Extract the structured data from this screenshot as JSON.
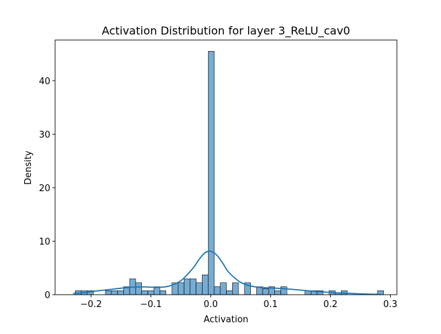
{
  "chart_data": {
    "type": "bar",
    "subtype": "histogram-with-kde",
    "title": "Activation Distribution for layer 3_ReLU_cav0",
    "xlabel": "Activation",
    "ylabel": "Density",
    "xlim": [
      -0.26,
      0.311
    ],
    "ylim": [
      0,
      47.6
    ],
    "xticks": [
      -0.2,
      -0.1,
      0.0,
      0.1,
      0.2,
      0.3
    ],
    "xtick_labels": [
      "−0.2",
      "−0.1",
      "0.0",
      "0.1",
      "0.2",
      "0.3"
    ],
    "yticks": [
      0,
      10,
      20,
      30,
      40
    ],
    "ytick_labels": [
      "0",
      "10",
      "20",
      "30",
      "40"
    ],
    "grid": false,
    "bar_color": "#6fa8d2",
    "kde_color": "#1f77b4",
    "bins": [
      {
        "x0": -0.2264,
        "x1": -0.2163,
        "density": 0.74
      },
      {
        "x0": -0.2163,
        "x1": -0.2062,
        "density": 0.74
      },
      {
        "x0": -0.2062,
        "x1": -0.1961,
        "density": 0.74
      },
      {
        "x0": -0.1759,
        "x1": -0.1658,
        "density": 0.74
      },
      {
        "x0": -0.1658,
        "x1": -0.1557,
        "density": 0.74
      },
      {
        "x0": -0.1557,
        "x1": -0.1456,
        "density": 0.74
      },
      {
        "x0": -0.1456,
        "x1": -0.1355,
        "density": 1.48
      },
      {
        "x0": -0.1355,
        "x1": -0.1254,
        "density": 2.96
      },
      {
        "x0": -0.1254,
        "x1": -0.1153,
        "density": 2.22
      },
      {
        "x0": -0.1153,
        "x1": -0.1052,
        "density": 0.74
      },
      {
        "x0": -0.1052,
        "x1": -0.0951,
        "density": 0.74
      },
      {
        "x0": -0.0951,
        "x1": -0.085,
        "density": 1.48
      },
      {
        "x0": -0.085,
        "x1": -0.0749,
        "density": 0.74
      },
      {
        "x0": -0.0648,
        "x1": -0.0547,
        "density": 2.22
      },
      {
        "x0": -0.0547,
        "x1": -0.0446,
        "density": 2.22
      },
      {
        "x0": -0.0446,
        "x1": -0.0345,
        "density": 2.96
      },
      {
        "x0": -0.0345,
        "x1": -0.0244,
        "density": 2.96
      },
      {
        "x0": -0.0244,
        "x1": -0.0143,
        "density": 2.22
      },
      {
        "x0": -0.0143,
        "x1": -0.0042,
        "density": 3.7
      },
      {
        "x0": -0.0042,
        "x1": 0.0059,
        "density": 45.5
      },
      {
        "x0": 0.0059,
        "x1": 0.016,
        "density": 1.48
      },
      {
        "x0": 0.016,
        "x1": 0.0261,
        "density": 2.22
      },
      {
        "x0": 0.0261,
        "x1": 0.0362,
        "density": 0.74
      },
      {
        "x0": 0.0362,
        "x1": 0.0463,
        "density": 2.22
      },
      {
        "x0": 0.0564,
        "x1": 0.0665,
        "density": 2.22
      },
      {
        "x0": 0.0766,
        "x1": 0.0867,
        "density": 1.48
      },
      {
        "x0": 0.0867,
        "x1": 0.0968,
        "density": 1.11
      },
      {
        "x0": 0.0968,
        "x1": 0.1069,
        "density": 1.48
      },
      {
        "x0": 0.1069,
        "x1": 0.117,
        "density": 0.74
      },
      {
        "x0": 0.117,
        "x1": 0.1271,
        "density": 1.48
      },
      {
        "x0": 0.1574,
        "x1": 0.1675,
        "density": 0.74
      },
      {
        "x0": 0.1675,
        "x1": 0.1776,
        "density": 0.74
      },
      {
        "x0": 0.1776,
        "x1": 0.1877,
        "density": 0.74
      },
      {
        "x0": 0.1978,
        "x1": 0.2079,
        "density": 0.74
      },
      {
        "x0": 0.2079,
        "x1": 0.218,
        "density": 0.37
      },
      {
        "x0": 0.218,
        "x1": 0.2281,
        "density": 0.74
      },
      {
        "x0": 0.2786,
        "x1": 0.2887,
        "density": 0.74
      }
    ],
    "kde": {
      "x": [
        -0.23,
        -0.21,
        -0.19,
        -0.17,
        -0.15,
        -0.13,
        -0.11,
        -0.09,
        -0.07,
        -0.05,
        -0.03,
        -0.02,
        -0.01,
        0.0,
        0.01,
        0.02,
        0.03,
        0.05,
        0.07,
        0.09,
        0.11,
        0.13,
        0.15,
        0.17,
        0.19,
        0.21,
        0.23,
        0.25,
        0.27,
        0.285
      ],
      "y": [
        0.2,
        0.4,
        0.7,
        0.95,
        1.2,
        1.4,
        1.45,
        1.35,
        1.6,
        2.6,
        4.9,
        6.5,
        7.8,
        8.1,
        7.4,
        5.9,
        4.2,
        2.3,
        1.55,
        1.3,
        1.2,
        1.05,
        0.85,
        0.65,
        0.5,
        0.35,
        0.25,
        0.15,
        0.08,
        0.05
      ]
    }
  }
}
